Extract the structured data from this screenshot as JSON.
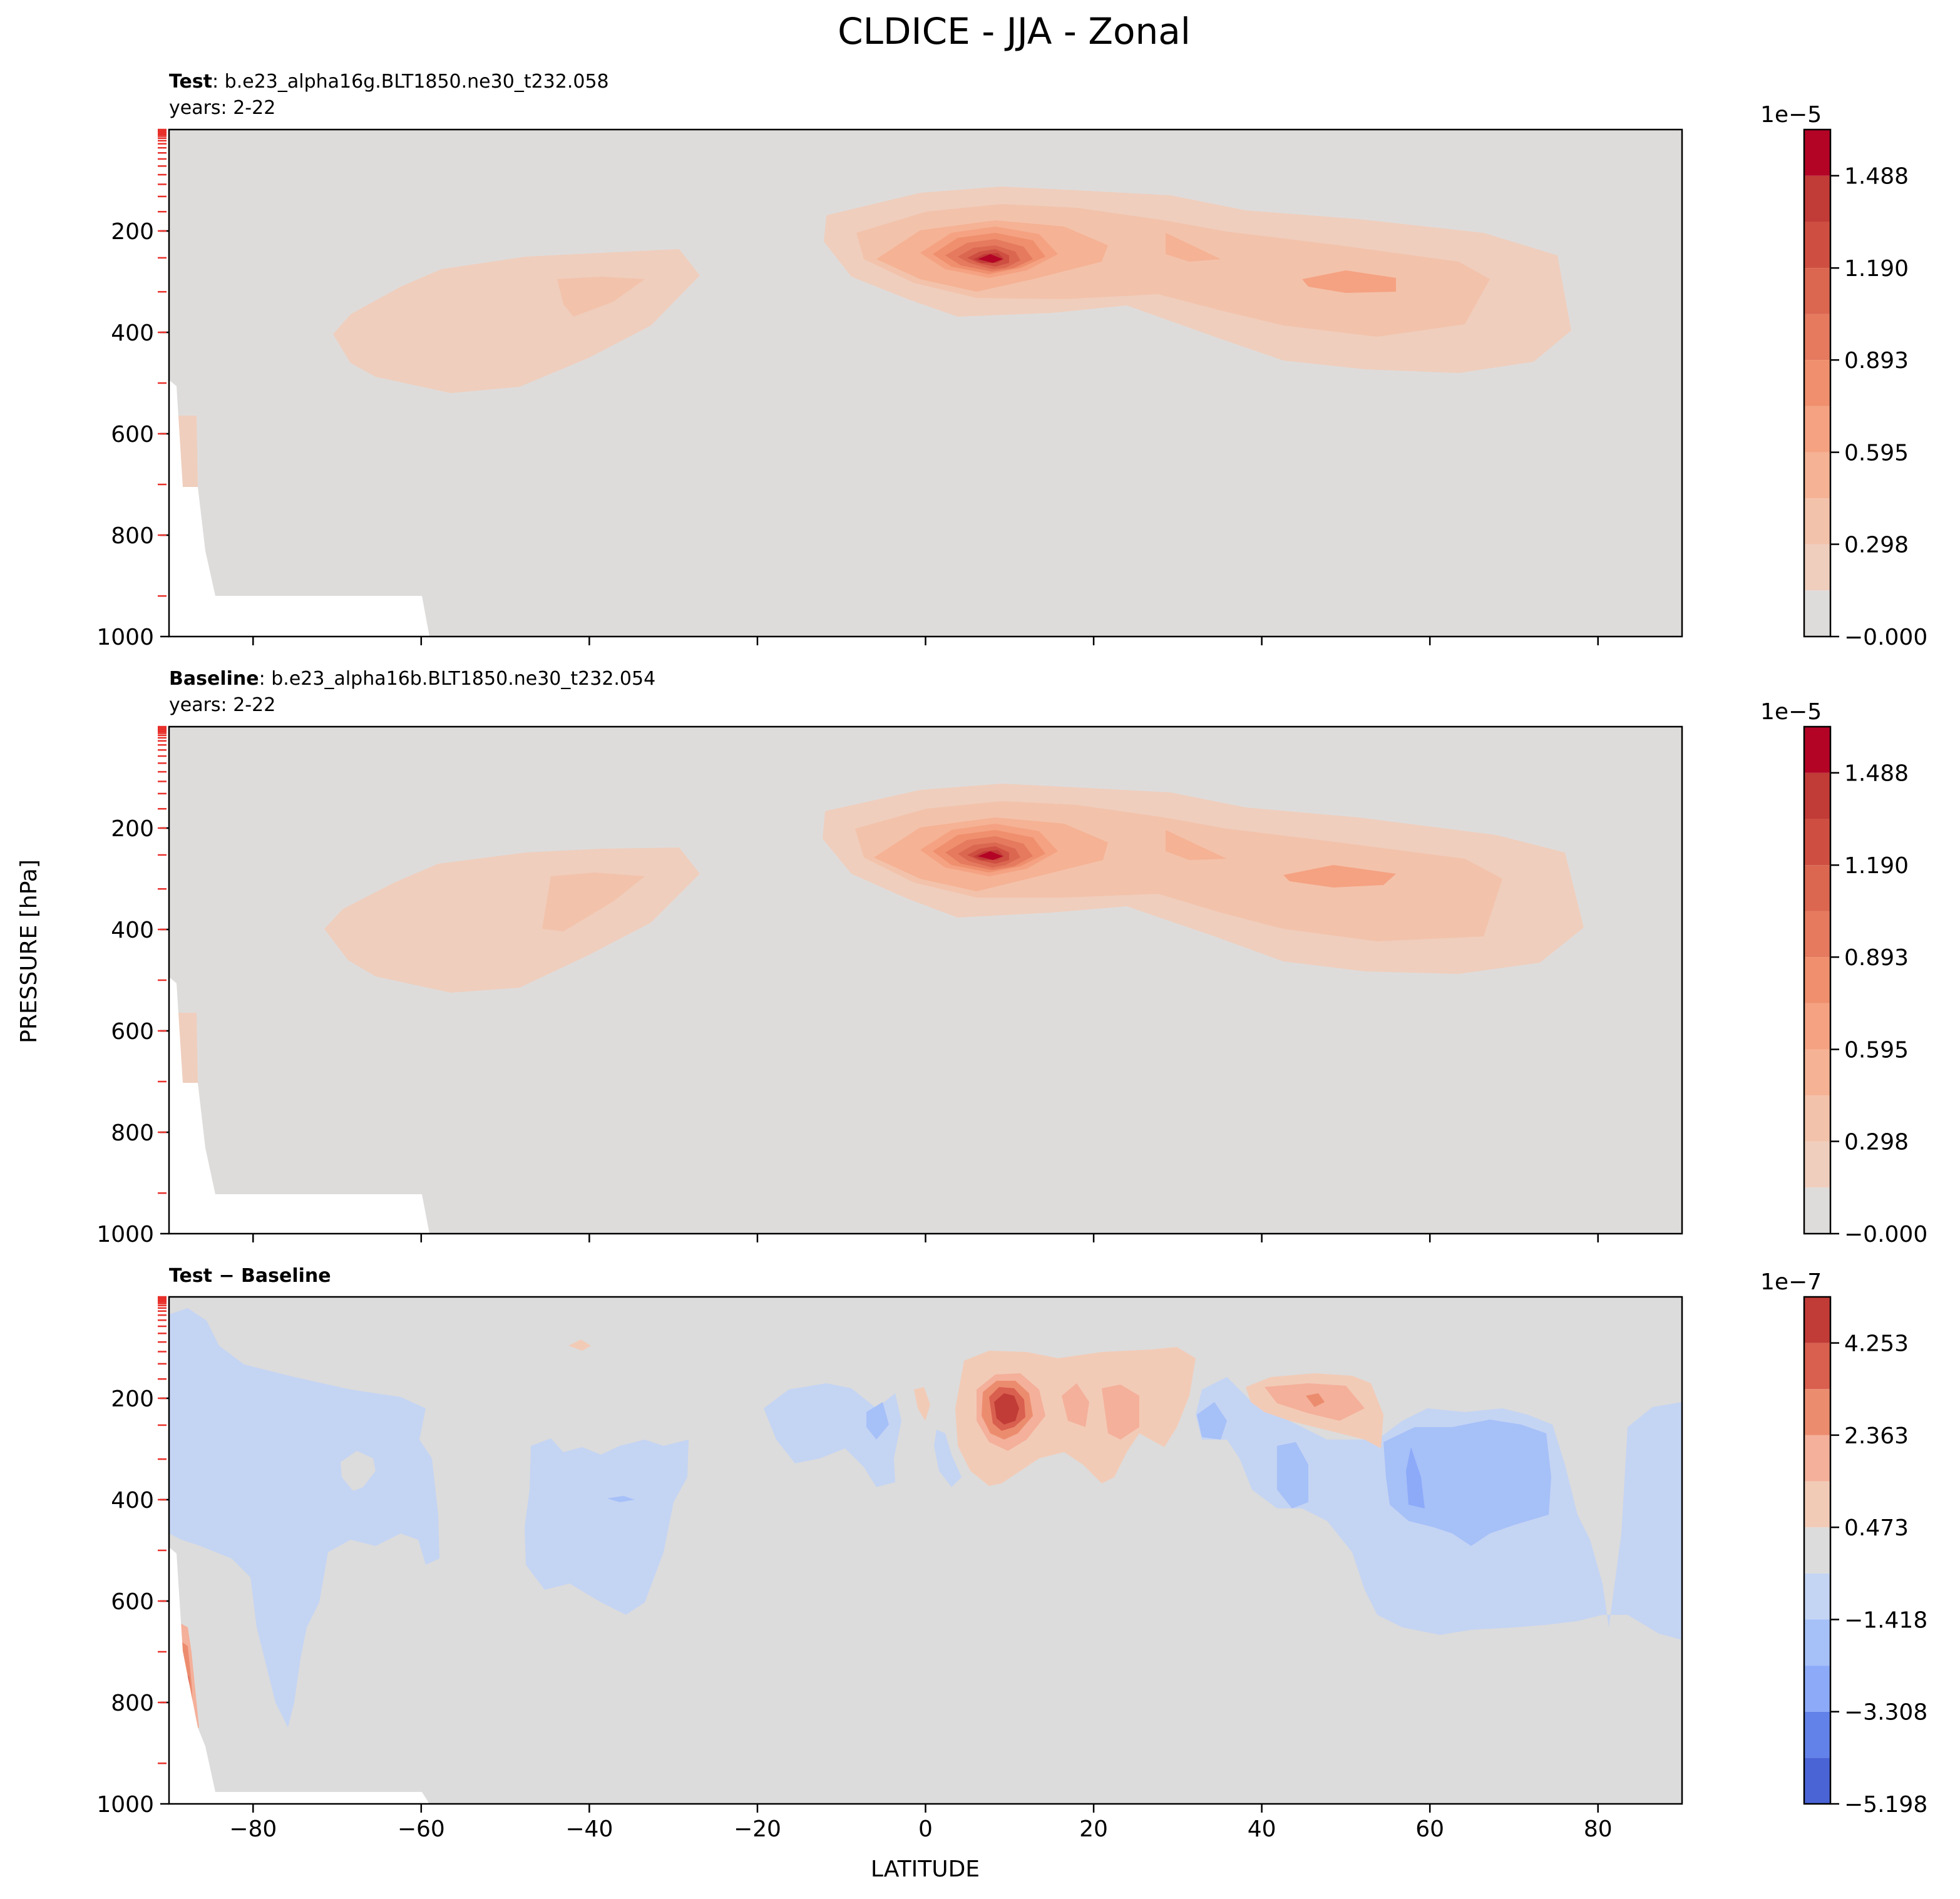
{
  "figure": {
    "title": "CLDICE - JJA - Zonal",
    "ylabel": "PRESSURE [hPa]",
    "xlabel": "LATITUDE"
  },
  "chart_data": [
    {
      "type": "contour",
      "title_bold": "Test",
      "title_rest": ": b.e23_alpha16g.BLT1850.ne30_t232.058",
      "subtitle": "years: 2-22",
      "xlim": [
        -90,
        90
      ],
      "ylim": [
        1000,
        0
      ],
      "x_ticks": [
        -80,
        -60,
        -40,
        -20,
        0,
        20,
        40,
        60,
        80
      ],
      "y_ticks": [
        200,
        400,
        600,
        800,
        1000
      ],
      "colorbar": {
        "exponent": "1e−5",
        "levels": [
          0.0,
          0.149,
          0.298,
          0.446,
          0.595,
          0.744,
          0.893,
          1.041,
          1.19,
          1.339,
          1.488,
          1.637
        ],
        "tick_values": [
          0.0,
          0.298,
          0.595,
          0.893,
          1.19,
          1.488
        ],
        "tick_labels": [
          "−0.000",
          "0.298",
          "0.595",
          "0.893",
          "1.190",
          "1.488"
        ],
        "colors": [
          "#dedcdb",
          "#efcebd",
          "#f3c2ab",
          "#f5b294",
          "#f5a282",
          "#ef8f6d",
          "#e57a5f",
          "#db6750",
          "#ce4f41",
          "#c13b37",
          "#b40426"
        ]
      },
      "features": [
        {
          "name": "upper-tropical-max",
          "lat": 9,
          "pressure": 250,
          "value": 1.6
        },
        {
          "name": "nh-midlatitude-band",
          "lat": 45,
          "pressure": 300,
          "value": 0.6
        },
        {
          "name": "sh-midlatitude-band",
          "lat": -45,
          "pressure": 360,
          "value": 0.4
        }
      ]
    },
    {
      "type": "contour",
      "title_bold": "Baseline",
      "title_rest": ": b.e23_alpha16b.BLT1850.ne30_t232.054",
      "subtitle": "years: 2-22",
      "xlim": [
        -90,
        90
      ],
      "ylim": [
        1000,
        0
      ],
      "x_ticks": [
        -80,
        -60,
        -40,
        -20,
        0,
        20,
        40,
        60,
        80
      ],
      "y_ticks": [
        200,
        400,
        600,
        800,
        1000
      ],
      "colorbar": {
        "exponent": "1e−5",
        "levels": [
          0.0,
          0.149,
          0.298,
          0.446,
          0.595,
          0.744,
          0.893,
          1.041,
          1.19,
          1.339,
          1.488,
          1.637
        ],
        "tick_values": [
          0.0,
          0.298,
          0.595,
          0.893,
          1.19,
          1.488
        ],
        "tick_labels": [
          "−0.000",
          "0.298",
          "0.595",
          "0.893",
          "1.190",
          "1.488"
        ],
        "colors": [
          "#dedcdb",
          "#efcebd",
          "#f3c2ab",
          "#f5b294",
          "#f5a282",
          "#ef8f6d",
          "#e57a5f",
          "#db6750",
          "#ce4f41",
          "#c13b37",
          "#b40426"
        ]
      },
      "features": [
        {
          "name": "upper-tropical-max",
          "lat": 9,
          "pressure": 250,
          "value": 1.6
        },
        {
          "name": "nh-midlatitude-band",
          "lat": 45,
          "pressure": 300,
          "value": 0.6
        },
        {
          "name": "sh-midlatitude-band",
          "lat": -45,
          "pressure": 360,
          "value": 0.4
        }
      ]
    },
    {
      "type": "contour",
      "title_bold": "Test − Baseline",
      "title_rest": "",
      "subtitle": "",
      "xlim": [
        -90,
        90
      ],
      "ylim": [
        1000,
        0
      ],
      "x_ticks": [
        -80,
        -60,
        -40,
        -20,
        0,
        20,
        40,
        60,
        80
      ],
      "y_ticks": [
        200,
        400,
        600,
        800,
        1000
      ],
      "colorbar": {
        "exponent": "1e−7",
        "levels": [
          -5.198,
          -4.253,
          -3.308,
          -2.363,
          -1.418,
          -0.473,
          0.473,
          1.418,
          2.363,
          3.308,
          4.253,
          5.198
        ],
        "tick_values": [
          -5.198,
          -3.308,
          -1.418,
          0.473,
          2.363,
          4.253
        ],
        "tick_labels": [
          "−5.198",
          "−3.308",
          "−1.418",
          "0.473",
          "2.363",
          "4.253"
        ],
        "colors": [
          "#4a64d6",
          "#6282ea",
          "#8caaf8",
          "#a6c0f8",
          "#c4d4f3",
          "#dcdcdc",
          "#f2cbb7",
          "#f4b09a",
          "#ec8c6f",
          "#d95f4e",
          "#c13b37"
        ]
      },
      "features": [
        {
          "name": "positive-tropical",
          "lat": 8,
          "pressure": 240,
          "value": 4.5
        },
        {
          "name": "positive-nh-midlat",
          "lat": 45,
          "pressure": 210,
          "value": 2.0
        },
        {
          "name": "negative-nh-highlat",
          "lat": 65,
          "pressure": 400,
          "value": -2.5
        },
        {
          "name": "negative-sh-polar",
          "lat": -80,
          "pressure": 350,
          "value": -1.0
        },
        {
          "name": "positive-sh-polar-low",
          "lat": -88,
          "pressure": 650,
          "value": 4.8
        }
      ]
    }
  ]
}
